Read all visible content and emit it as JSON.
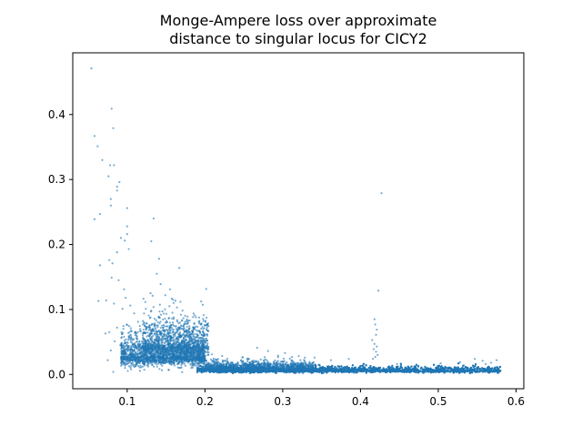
{
  "chart_data": {
    "type": "scatter",
    "title_lines": [
      "Monge-Ampere loss over approximate",
      "distance to singular locus for CICY2"
    ],
    "xlabel": "",
    "ylabel": "",
    "xlim": [
      0.03,
      0.61
    ],
    "ylim": [
      -0.022,
      0.495
    ],
    "x_ticks": [
      0.1,
      0.2,
      0.3,
      0.4,
      0.5,
      0.6
    ],
    "x_tick_labels": [
      "0.1",
      "0.2",
      "0.3",
      "0.4",
      "0.5",
      "0.6"
    ],
    "y_ticks": [
      0.0,
      0.1,
      0.2,
      0.3,
      0.4
    ],
    "y_tick_labels": [
      "0.0",
      "0.1",
      "0.2",
      "0.3",
      "0.4"
    ],
    "grid": false,
    "marker_color": "#1f77b4",
    "marker_alpha": 0.6,
    "points": [
      [
        0.054,
        0.471
      ],
      [
        0.08,
        0.409
      ],
      [
        0.058,
        0.367
      ],
      [
        0.082,
        0.379
      ],
      [
        0.062,
        0.351
      ],
      [
        0.068,
        0.33
      ],
      [
        0.078,
        0.322
      ],
      [
        0.083,
        0.322
      ],
      [
        0.076,
        0.305
      ],
      [
        0.09,
        0.296
      ],
      [
        0.087,
        0.289
      ],
      [
        0.087,
        0.283
      ],
      [
        0.079,
        0.27
      ],
      [
        0.079,
        0.26
      ],
      [
        0.058,
        0.239
      ],
      [
        0.065,
        0.247
      ],
      [
        0.1,
        0.256
      ],
      [
        0.134,
        0.24
      ],
      [
        0.1,
        0.228
      ],
      [
        0.092,
        0.21
      ],
      [
        0.097,
        0.206
      ],
      [
        0.1,
        0.216
      ],
      [
        0.131,
        0.205
      ],
      [
        0.102,
        0.193
      ],
      [
        0.087,
        0.188
      ],
      [
        0.141,
        0.178
      ],
      [
        0.077,
        0.176
      ],
      [
        0.081,
        0.171
      ],
      [
        0.065,
        0.168
      ],
      [
        0.167,
        0.164
      ],
      [
        0.08,
        0.149
      ],
      [
        0.089,
        0.145
      ],
      [
        0.138,
        0.155
      ],
      [
        0.143,
        0.139
      ],
      [
        0.096,
        0.131
      ],
      [
        0.063,
        0.113
      ],
      [
        0.073,
        0.114
      ],
      [
        0.083,
        0.109
      ],
      [
        0.427,
        0.279
      ],
      [
        0.423,
        0.129
      ],
      [
        0.418,
        0.085
      ],
      [
        0.419,
        0.077
      ],
      [
        0.421,
        0.069
      ],
      [
        0.42,
        0.061
      ],
      [
        0.415,
        0.053
      ],
      [
        0.418,
        0.047
      ],
      [
        0.421,
        0.043
      ],
      [
        0.417,
        0.039
      ],
      [
        0.42,
        0.035
      ],
      [
        0.422,
        0.03
      ],
      [
        0.419,
        0.027
      ],
      [
        0.416,
        0.024
      ],
      [
        0.087,
        0.072
      ],
      [
        0.077,
        0.065
      ],
      [
        0.072,
        0.063
      ],
      [
        0.084,
        0.051
      ],
      [
        0.091,
        0.045
      ],
      [
        0.079,
        0.037
      ],
      [
        0.075,
        0.022
      ],
      [
        0.082,
        0.004
      ],
      [
        0.105,
        0.008
      ],
      [
        0.118,
        0.011
      ],
      [
        0.123,
        0.019
      ],
      [
        0.112,
        0.033
      ],
      [
        0.137,
        0.029
      ],
      [
        0.143,
        0.038
      ],
      [
        0.128,
        0.047
      ],
      [
        0.131,
        0.064
      ],
      [
        0.121,
        0.069
      ],
      [
        0.114,
        0.081
      ],
      [
        0.154,
        0.087
      ],
      [
        0.148,
        0.074
      ],
      [
        0.156,
        0.059
      ],
      [
        0.161,
        0.042
      ],
      [
        0.166,
        0.033
      ],
      [
        0.171,
        0.051
      ],
      [
        0.176,
        0.066
      ],
      [
        0.168,
        0.072
      ],
      [
        0.182,
        0.054
      ],
      [
        0.188,
        0.038
      ],
      [
        0.193,
        0.026
      ],
      [
        0.197,
        0.044
      ],
      [
        0.201,
        0.029
      ],
      [
        0.205,
        0.018
      ],
      [
        0.209,
        0.031
      ],
      [
        0.215,
        0.022
      ],
      [
        0.221,
        0.014
      ],
      [
        0.267,
        0.041
      ],
      [
        0.281,
        0.036
      ],
      [
        0.294,
        0.029
      ],
      [
        0.303,
        0.033
      ],
      [
        0.312,
        0.027
      ],
      [
        0.341,
        0.026
      ],
      [
        0.362,
        0.022
      ],
      [
        0.385,
        0.024
      ],
      [
        0.447,
        0.016
      ],
      [
        0.474,
        0.012
      ],
      [
        0.503,
        0.017
      ],
      [
        0.528,
        0.019
      ],
      [
        0.547,
        0.024
      ],
      [
        0.557,
        0.021
      ],
      [
        0.568,
        0.018
      ],
      [
        0.575,
        0.022
      ],
      [
        0.561,
        0.016
      ],
      [
        0.533,
        0.014
      ],
      [
        0.164,
        0.103
      ],
      [
        0.159,
        0.115
      ],
      [
        0.149,
        0.122
      ],
      [
        0.155,
        0.131
      ],
      [
        0.13,
        0.125
      ],
      [
        0.124,
        0.101
      ],
      [
        0.109,
        0.094
      ],
      [
        0.104,
        0.106
      ],
      [
        0.098,
        0.118
      ],
      [
        0.094,
        0.101
      ]
    ],
    "clusters": [
      {
        "x_range": [
          0.092,
          0.2
        ],
        "y_mean": 0.028,
        "y_spread": 0.022,
        "count": 1800
      },
      {
        "x_range": [
          0.12,
          0.205
        ],
        "y_mean": 0.045,
        "y_spread": 0.03,
        "count": 900
      },
      {
        "x_range": [
          0.19,
          0.58
        ],
        "y_mean": 0.006,
        "y_spread": 0.004,
        "count": 6500
      },
      {
        "x_range": [
          0.2,
          0.34
        ],
        "y_mean": 0.009,
        "y_spread": 0.007,
        "count": 1500
      }
    ]
  }
}
